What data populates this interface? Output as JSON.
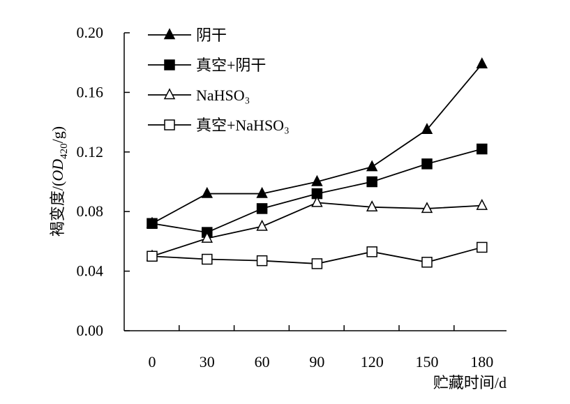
{
  "chart_data": {
    "type": "line",
    "xlabel": "贮藏时间/d",
    "ylabel": {
      "main": "褐变度/(",
      "italic": "OD",
      "sub": "420",
      "tail": "/g)"
    },
    "x": [
      0,
      30,
      60,
      90,
      120,
      150,
      180
    ],
    "x_tick_labels": [
      "0",
      "30",
      "60",
      "90",
      "120",
      "150",
      "180"
    ],
    "y_tick_labels": [
      "0.00",
      "0.04",
      "0.08",
      "0.12",
      "0.16",
      "0.20"
    ],
    "y_ticks": [
      0,
      0.04,
      0.08,
      0.12,
      0.16,
      0.2
    ],
    "ylim": [
      0,
      0.2
    ],
    "grid": false,
    "legend_position": "top-left",
    "series": [
      {
        "name": "阴干",
        "marker": "triangle",
        "filled": true,
        "values": [
          0.072,
          0.092,
          0.092,
          0.1,
          0.11,
          0.135,
          0.179
        ]
      },
      {
        "name": "真空+阴干",
        "marker": "square",
        "filled": true,
        "values": [
          0.072,
          0.066,
          0.082,
          0.092,
          0.1,
          0.112,
          0.122
        ]
      },
      {
        "name": "NaHSO₃",
        "marker": "triangle",
        "filled": false,
        "values": [
          0.05,
          0.062,
          0.07,
          0.086,
          0.083,
          0.082,
          0.084
        ]
      },
      {
        "name": "真空+NaHSO₃",
        "marker": "square",
        "filled": false,
        "values": [
          0.05,
          0.048,
          0.047,
          0.045,
          0.053,
          0.046,
          0.056
        ]
      }
    ]
  }
}
